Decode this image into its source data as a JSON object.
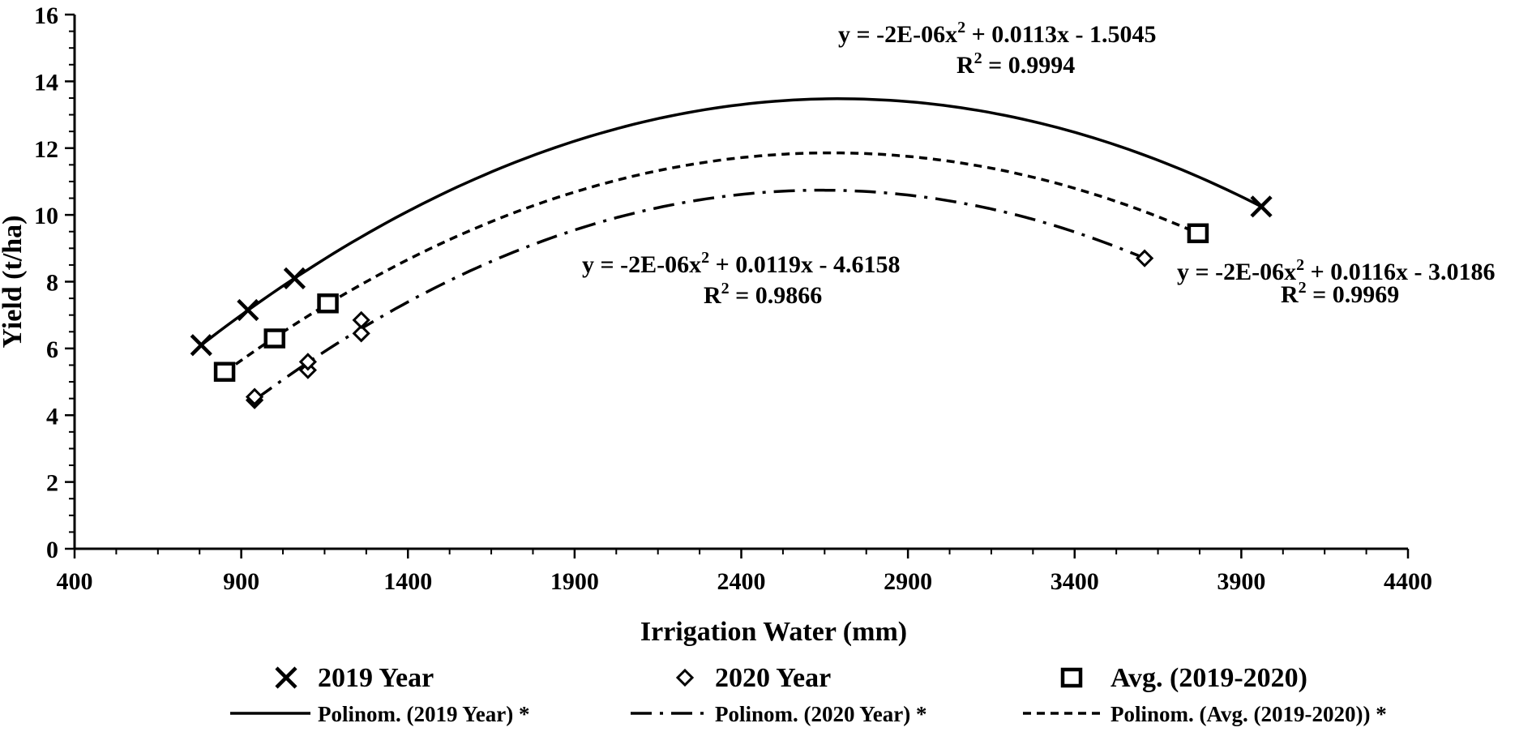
{
  "chart_data": {
    "type": "scatter",
    "xlabel": "Irrigation Water (mm)",
    "ylabel": "Yield (t/ha)",
    "xlim": [
      400,
      4400
    ],
    "ylim": [
      0,
      16
    ],
    "x_ticks": [
      400,
      900,
      1400,
      1900,
      2400,
      2900,
      3400,
      3900,
      4400
    ],
    "y_ticks": [
      0,
      2,
      4,
      6,
      8,
      10,
      12,
      14,
      16
    ],
    "grid": false,
    "legend_position": "bottom",
    "series": [
      {
        "name": "2019 Year",
        "marker": "x",
        "points": [
          [
            780,
            6.1
          ],
          [
            920,
            7.15
          ],
          [
            1060,
            8.1
          ],
          [
            3960,
            10.25
          ]
        ]
      },
      {
        "name": "2020 Year",
        "marker": "diamond",
        "points": [
          [
            940,
            4.45
          ],
          [
            940,
            4.55
          ],
          [
            1100,
            5.35
          ],
          [
            1100,
            5.6
          ],
          [
            1260,
            6.45
          ],
          [
            1260,
            6.85
          ],
          [
            3610,
            8.7
          ]
        ]
      },
      {
        "name": "Avg. (2019-2020)",
        "marker": "square",
        "points": [
          [
            850,
            5.3
          ],
          [
            1000,
            6.3
          ],
          [
            1160,
            7.35
          ],
          [
            3770,
            9.45
          ]
        ]
      }
    ],
    "trendlines": [
      {
        "name": "Polinom. (2019 Year) *",
        "style": "solid",
        "x_range": [
          780,
          3960
        ],
        "equation": "y = -2E-06x",
        "equation_tail": "  + 0.0113x - 1.5045",
        "r2_label": "R",
        "r2_value": "  = 0.9994"
      },
      {
        "name": "Polinom. (2020 Year) *",
        "style": "dashdot",
        "x_range": [
          940,
          3610
        ],
        "equation": "y = -2E-06x",
        "equation_tail": "  + 0.0119x - 4.6158",
        "r2_label": "R",
        "r2_value": "  = 0.9866"
      },
      {
        "name": "Polinom. (Avg. (2019-2020)) *",
        "style": "dashed",
        "x_range": [
          850,
          3770
        ],
        "equation": "y = -2E-06x",
        "equation_tail": "  + 0.0116x - 3.0186",
        "r2_label": "R",
        "r2_value": "  = 0.9969"
      }
    ],
    "superscript": "2"
  }
}
